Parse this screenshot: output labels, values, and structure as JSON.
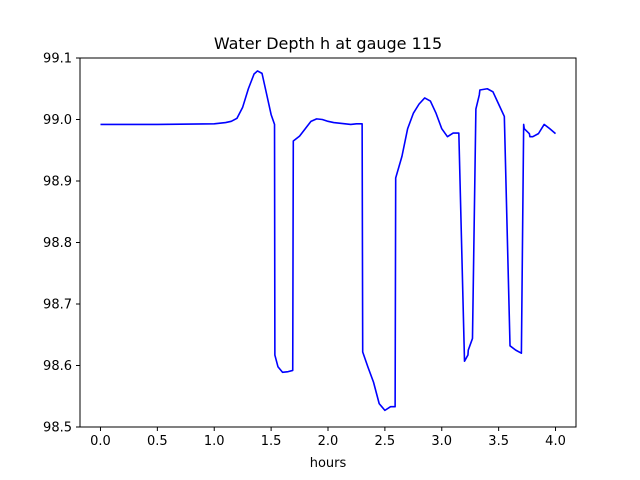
{
  "chart_data": {
    "type": "line",
    "title": "Water Depth h at gauge 115",
    "xlabel": "hours",
    "ylabel": "",
    "xlim": [
      -0.18,
      4.18
    ],
    "ylim": [
      98.5,
      99.1
    ],
    "xticks": [
      0.0,
      0.5,
      1.0,
      1.5,
      2.0,
      2.5,
      3.0,
      3.5,
      4.0
    ],
    "xtick_labels": [
      "0.0",
      "0.5",
      "1.0",
      "1.5",
      "2.0",
      "2.5",
      "3.0",
      "3.5",
      "4.0"
    ],
    "yticks": [
      98.5,
      98.6,
      98.7,
      98.8,
      98.9,
      99.0,
      99.1
    ],
    "ytick_labels": [
      "98.5",
      "98.6",
      "98.7",
      "98.8",
      "98.9",
      "99.0",
      "99.1"
    ],
    "grid": false,
    "series": [
      {
        "color": "#0000ff",
        "x": [
          0.0,
          0.5,
          1.0,
          1.1,
          1.15,
          1.2,
          1.25,
          1.3,
          1.35,
          1.38,
          1.42,
          1.45,
          1.5,
          1.53,
          1.533,
          1.56,
          1.6,
          1.65,
          1.69,
          1.695,
          1.75,
          1.8,
          1.85,
          1.9,
          1.95,
          2.0,
          2.05,
          2.1,
          2.15,
          2.2,
          2.25,
          2.3,
          2.305,
          2.35,
          2.4,
          2.45,
          2.5,
          2.55,
          2.59,
          2.595,
          2.65,
          2.7,
          2.75,
          2.8,
          2.85,
          2.9,
          2.95,
          3.0,
          3.05,
          3.1,
          3.15,
          3.2,
          3.23,
          3.233,
          3.27,
          3.3,
          3.33,
          3.335,
          3.4,
          3.45,
          3.5,
          3.55,
          3.6,
          3.65,
          3.7,
          3.72,
          3.725,
          3.77,
          3.775,
          3.8,
          3.85,
          3.9,
          3.95,
          4.0
        ],
        "y": [
          98.992,
          98.992,
          98.993,
          98.995,
          98.997,
          99.002,
          99.02,
          99.05,
          99.074,
          99.079,
          99.075,
          99.05,
          99.008,
          98.992,
          98.617,
          98.598,
          98.589,
          98.59,
          98.592,
          98.965,
          98.973,
          98.985,
          98.997,
          99.001,
          99.0,
          98.997,
          98.995,
          98.994,
          98.993,
          98.992,
          98.993,
          98.993,
          98.622,
          98.598,
          98.573,
          98.538,
          98.527,
          98.533,
          98.533,
          98.905,
          98.94,
          98.985,
          99.01,
          99.025,
          99.035,
          99.03,
          99.01,
          98.985,
          98.972,
          98.978,
          98.978,
          98.607,
          98.617,
          98.625,
          98.644,
          99.017,
          99.04,
          99.048,
          99.05,
          99.045,
          99.025,
          99.005,
          98.632,
          98.625,
          98.62,
          98.992,
          98.985,
          98.977,
          98.972,
          98.972,
          98.977,
          98.992,
          98.985,
          98.977
        ]
      }
    ]
  }
}
